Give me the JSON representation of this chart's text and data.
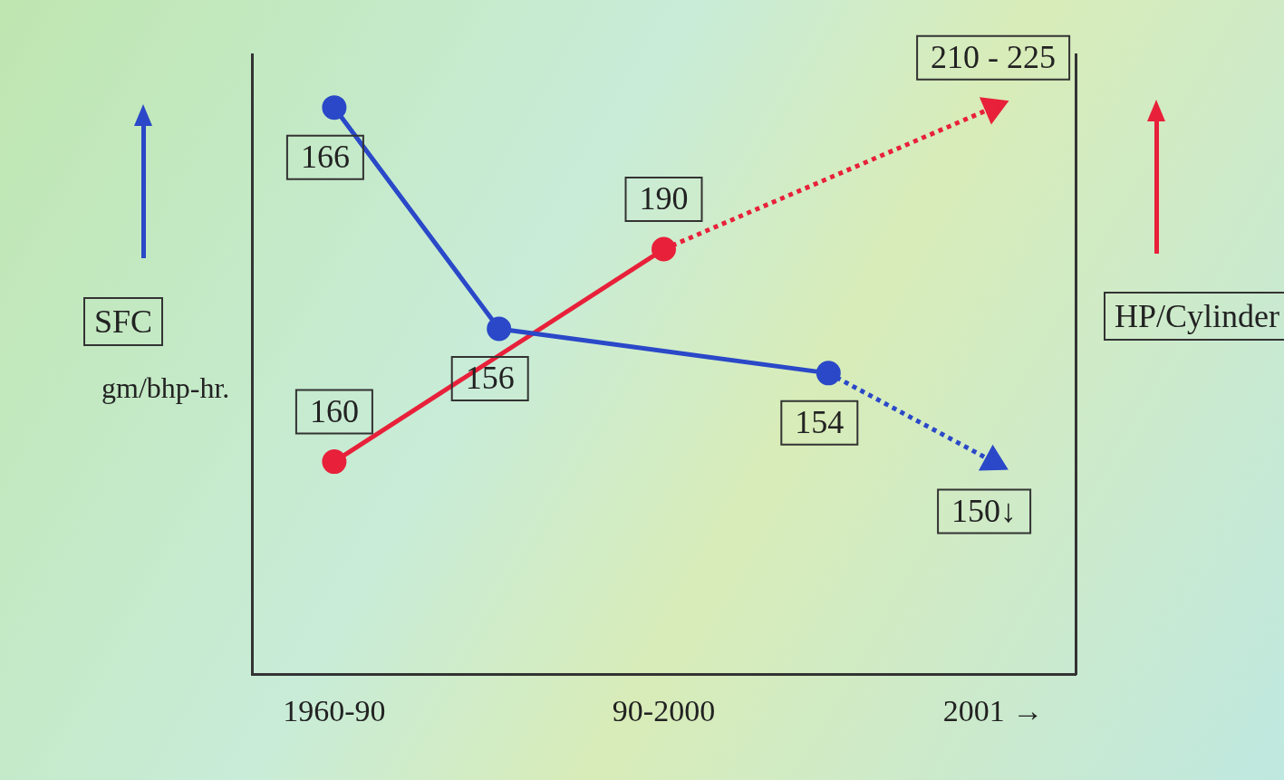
{
  "chart_data": {
    "type": "line",
    "ylabel": "SFC",
    "y2label": "HP/Cylinder",
    "annotations": [
      "gm/bhp-hr."
    ],
    "categories": [
      "1960-90",
      null,
      "90-2000",
      null,
      "2001 →"
    ],
    "series": [
      {
        "color": "#2a48c8",
        "values": [
          166,
          156,
          null,
          154,
          null
        ],
        "value_labels": [
          "166",
          "156",
          null,
          "154",
          null
        ],
        "marker": "circle",
        "line_style": "solid"
      },
      {
        "color": "#2a48c8",
        "values": [
          null,
          null,
          null,
          154,
          150
        ],
        "value_labels": [
          null,
          null,
          null,
          null,
          "150↓"
        ],
        "marker": "triangle",
        "line_style": "dotted"
      },
      {
        "color": "#e8203a",
        "axis": "y2",
        "values": [
          160,
          null,
          190,
          null,
          null
        ],
        "value_labels": [
          "160",
          null,
          "190",
          null,
          null
        ],
        "marker": "circle",
        "line_style": "solid"
      },
      {
        "color": "#e8203a",
        "axis": "y2",
        "values": [
          null,
          null,
          190,
          null,
          210
        ],
        "value_labels": [
          null,
          null,
          null,
          null,
          "210 - 225"
        ],
        "marker": "triangle",
        "line_style": "dotted"
      }
    ],
    "grid": false,
    "legend": false
  }
}
